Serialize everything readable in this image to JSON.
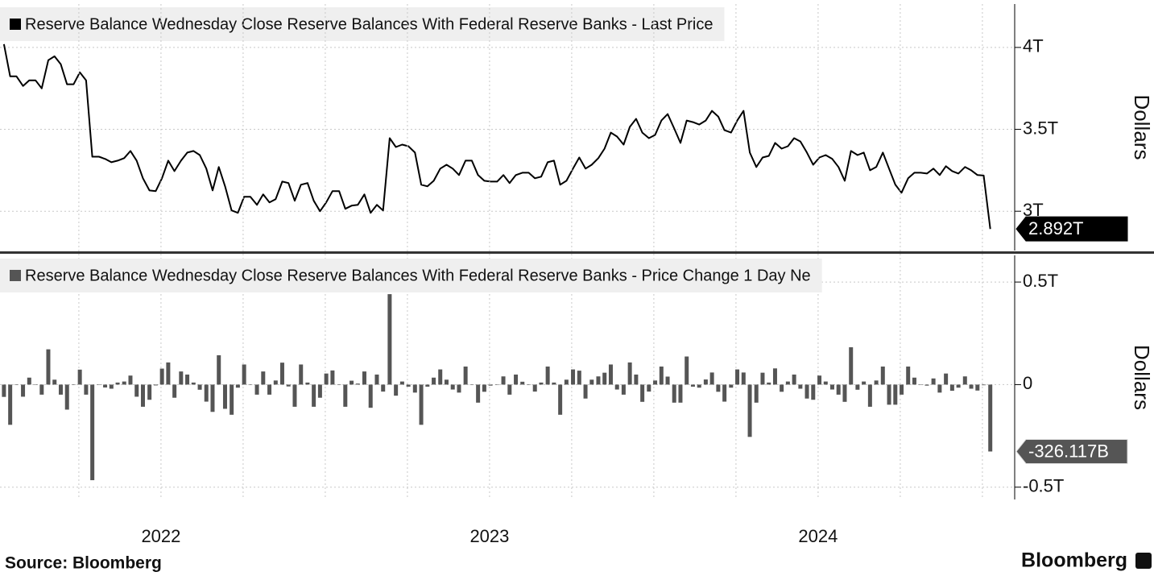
{
  "chart_data": [
    {
      "type": "line",
      "series": [
        {
          "name": "Reserve Balance Wednesday Close Reserve Balances With Federal Reserve Banks - Last Price",
          "color": "#000000",
          "values": [
            4.02,
            3.824,
            3.824,
            3.765,
            3.799,
            3.799,
            3.75,
            3.922,
            3.946,
            3.897,
            3.775,
            3.775,
            3.848,
            3.799,
            3.333,
            3.333,
            3.319,
            3.299,
            3.309,
            3.324,
            3.368,
            3.309,
            3.201,
            3.127,
            3.123,
            3.201,
            3.309,
            3.245,
            3.309,
            3.358,
            3.368,
            3.343,
            3.26,
            3.127,
            3.27,
            3.152,
            3.005,
            2.99,
            3.088,
            3.088,
            3.039,
            3.103,
            3.054,
            3.074,
            3.181,
            3.172,
            3.064,
            3.162,
            3.172,
            3.064,
            3.0,
            3.054,
            3.123,
            3.123,
            3.015,
            3.034,
            3.039,
            3.103,
            2.99,
            3.039,
            3.005,
            3.446,
            3.392,
            3.407,
            3.397,
            3.358,
            3.162,
            3.152,
            3.186,
            3.26,
            3.284,
            3.26,
            3.221,
            3.309,
            3.309,
            3.221,
            3.186,
            3.181,
            3.181,
            3.221,
            3.172,
            3.221,
            3.235,
            3.235,
            3.201,
            3.211,
            3.299,
            3.309,
            3.162,
            3.186,
            3.26,
            3.328,
            3.26,
            3.284,
            3.324,
            3.382,
            3.48,
            3.456,
            3.407,
            3.515,
            3.564,
            3.48,
            3.446,
            3.466,
            3.554,
            3.593,
            3.505,
            3.417,
            3.554,
            3.544,
            3.529,
            3.554,
            3.613,
            3.578,
            3.495,
            3.48,
            3.554,
            3.613,
            3.358,
            3.27,
            3.328,
            3.338,
            3.417,
            3.382,
            3.397,
            3.446,
            3.426,
            3.358,
            3.284,
            3.328,
            3.343,
            3.319,
            3.27,
            3.186,
            3.368,
            3.343,
            3.358,
            3.25,
            3.27,
            3.358,
            3.26,
            3.162,
            3.113,
            3.201,
            3.235,
            3.235,
            3.23,
            3.26,
            3.221,
            3.275,
            3.245,
            3.23,
            3.27,
            3.25,
            3.221,
            3.218,
            2.892
          ],
          "value_labels": [
            null,
            null,
            null,
            null,
            null,
            null,
            null,
            null,
            null,
            null,
            null,
            null,
            null,
            null,
            null,
            null,
            null,
            null,
            null,
            null,
            null,
            null,
            null,
            null,
            null,
            null,
            null,
            null,
            null,
            null,
            null,
            null,
            null,
            null,
            null,
            null,
            null,
            null,
            null,
            null,
            null,
            null,
            null,
            null,
            null,
            null,
            null,
            null,
            null,
            null,
            null,
            null,
            null,
            null,
            null,
            null,
            null,
            null,
            null,
            null,
            null,
            null,
            null,
            null,
            null,
            null,
            null,
            null,
            null,
            null,
            null,
            null,
            null,
            null,
            null,
            null,
            null,
            null,
            null,
            null,
            null,
            null,
            null,
            null,
            null,
            null,
            null,
            null,
            null,
            null,
            null,
            null,
            null,
            null,
            null,
            null,
            null,
            null,
            null,
            null,
            null,
            null,
            null,
            null,
            null,
            null,
            null,
            null,
            null,
            null,
            null,
            null,
            null,
            null,
            null,
            null,
            null,
            null,
            null,
            null,
            null,
            null,
            null,
            null,
            null,
            null,
            null,
            null,
            null,
            null,
            null,
            null,
            null,
            null,
            null,
            null,
            null,
            null,
            null,
            null,
            null,
            null,
            null,
            null,
            null,
            null,
            null,
            null,
            null,
            null,
            null,
            null,
            null,
            null,
            null,
            null,
            "2.892T"
          ]
        }
      ],
      "x": [
        2021.522,
        2021.541,
        2021.56,
        2021.58,
        2021.599,
        2021.618,
        2021.637,
        2021.657,
        2021.676,
        2021.695,
        2021.714,
        2021.734,
        2021.753,
        2021.772,
        2021.791,
        2021.811,
        2021.83,
        2021.849,
        2021.868,
        2021.888,
        2021.907,
        2021.926,
        2021.945,
        2021.965,
        2021.984,
        2022.003,
        2022.022,
        2022.041,
        2022.061,
        2022.08,
        2022.099,
        2022.118,
        2022.138,
        2022.157,
        2022.176,
        2022.195,
        2022.215,
        2022.234,
        2022.253,
        2022.272,
        2022.292,
        2022.311,
        2022.33,
        2022.349,
        2022.369,
        2022.388,
        2022.407,
        2022.426,
        2022.446,
        2022.465,
        2022.484,
        2022.503,
        2022.522,
        2022.542,
        2022.561,
        2022.58,
        2022.599,
        2022.619,
        2022.638,
        2022.657,
        2022.676,
        2022.696,
        2022.715,
        2022.734,
        2022.753,
        2022.773,
        2022.792,
        2022.811,
        2022.83,
        2022.85,
        2022.869,
        2022.888,
        2022.907,
        2022.927,
        2022.946,
        2022.965,
        2022.984,
        2023.003,
        2023.023,
        2023.042,
        2023.061,
        2023.08,
        2023.1,
        2023.119,
        2023.138,
        2023.157,
        2023.177,
        2023.196,
        2023.215,
        2023.234,
        2023.254,
        2023.273,
        2023.292,
        2023.311,
        2023.331,
        2023.35,
        2023.369,
        2023.388,
        2023.408,
        2023.427,
        2023.446,
        2023.465,
        2023.485,
        2023.504,
        2023.523,
        2023.542,
        2023.562,
        2023.581,
        2023.6,
        2023.619,
        2023.638,
        2023.658,
        2023.677,
        2023.696,
        2023.715,
        2023.735,
        2023.754,
        2023.773,
        2023.792,
        2023.812,
        2023.831,
        2023.85,
        2023.869,
        2023.889,
        2023.908,
        2023.927,
        2023.946,
        2023.966,
        2023.985,
        2024.004,
        2024.023,
        2024.043,
        2024.062,
        2024.081,
        2024.1,
        2024.12,
        2024.139,
        2024.158,
        2024.177,
        2024.197,
        2024.216,
        2024.235,
        2024.254,
        2024.274,
        2024.293,
        2024.312,
        2024.331,
        2024.351,
        2024.37,
        2024.389,
        2024.408,
        2024.427,
        2024.447,
        2024.466,
        2024.485,
        2024.504,
        2024.524
      ],
      "xlim": [
        2021.51,
        2024.586
      ],
      "ylim": [
        2.76,
        4.265
      ],
      "yticks": [
        {
          "value": 3,
          "label": "3T"
        },
        {
          "value": 3.5,
          "label": "3.5T"
        },
        {
          "value": 4,
          "label": "4T"
        }
      ],
      "ylabel": "Dollars",
      "grid": true
    },
    {
      "type": "bar",
      "series": [
        {
          "name": "Reserve Balance Wednesday Close Reserve Balances With Federal Reserve Banks - Price Change 1 Day Ne",
          "color": "#555555",
          "values": [
            -0.06,
            -0.196,
            0,
            -0.059,
            0.034,
            0,
            -0.049,
            0.172,
            0.024,
            -0.049,
            -0.122,
            0,
            0.073,
            -0.049,
            -0.466,
            0,
            -0.014,
            -0.02,
            0.01,
            0.015,
            0.044,
            -0.059,
            -0.108,
            -0.074,
            -0.004,
            0.078,
            0.108,
            -0.064,
            0.064,
            0.049,
            0.01,
            -0.025,
            -0.083,
            -0.133,
            0.143,
            -0.118,
            -0.147,
            -0.015,
            0.098,
            0,
            -0.049,
            0.064,
            -0.049,
            0.02,
            0.107,
            -0.009,
            -0.108,
            0.098,
            0.01,
            -0.108,
            -0.064,
            0.054,
            0.069,
            0,
            -0.108,
            0.019,
            0.005,
            0.064,
            -0.113,
            0.049,
            -0.034,
            0.441,
            -0.054,
            0.015,
            -0.01,
            -0.039,
            -0.196,
            -0.01,
            0.034,
            0.074,
            0.024,
            -0.024,
            -0.039,
            0.088,
            0,
            -0.088,
            -0.035,
            -0.005,
            0,
            0.04,
            -0.049,
            0.049,
            0.014,
            0,
            -0.034,
            0.01,
            0.088,
            0.01,
            -0.147,
            0.024,
            0.074,
            0.068,
            -0.068,
            0.024,
            0.04,
            0.058,
            0.098,
            -0.024,
            -0.049,
            0.108,
            0.049,
            -0.084,
            -0.034,
            0.02,
            0.088,
            0.039,
            -0.088,
            -0.088,
            0.137,
            -0.01,
            -0.015,
            0.025,
            0.059,
            -0.035,
            -0.083,
            -0.015,
            0.074,
            0.059,
            -0.255,
            -0.088,
            0.058,
            0.01,
            0.079,
            -0.035,
            0.015,
            0.049,
            -0.02,
            -0.068,
            -0.074,
            0.044,
            0.015,
            -0.024,
            -0.049,
            -0.084,
            0.182,
            -0.025,
            0.015,
            -0.108,
            0.02,
            0.088,
            -0.098,
            -0.098,
            -0.049,
            0.088,
            0.034,
            0,
            -0.005,
            0.03,
            -0.039,
            0.054,
            -0.03,
            -0.015,
            0.04,
            -0.02,
            -0.029,
            -0.003,
            -0.326117
          ],
          "value_labels": [
            null,
            null,
            null,
            null,
            null,
            null,
            null,
            null,
            null,
            null,
            null,
            null,
            null,
            null,
            null,
            null,
            null,
            null,
            null,
            null,
            null,
            null,
            null,
            null,
            null,
            null,
            null,
            null,
            null,
            null,
            null,
            null,
            null,
            null,
            null,
            null,
            null,
            null,
            null,
            null,
            null,
            null,
            null,
            null,
            null,
            null,
            null,
            null,
            null,
            null,
            null,
            null,
            null,
            null,
            null,
            null,
            null,
            null,
            null,
            null,
            null,
            null,
            null,
            null,
            null,
            null,
            null,
            null,
            null,
            null,
            null,
            null,
            null,
            null,
            null,
            null,
            null,
            null,
            null,
            null,
            null,
            null,
            null,
            null,
            null,
            null,
            null,
            null,
            null,
            null,
            null,
            null,
            null,
            null,
            null,
            null,
            null,
            null,
            null,
            null,
            null,
            null,
            null,
            null,
            null,
            null,
            null,
            null,
            null,
            null,
            null,
            null,
            null,
            null,
            null,
            null,
            null,
            null,
            null,
            null,
            null,
            null,
            null,
            null,
            null,
            null,
            null,
            null,
            null,
            null,
            null,
            null,
            null,
            null,
            null,
            null,
            null,
            null,
            null,
            null,
            null,
            null,
            null,
            null,
            null,
            null,
            null,
            null,
            null,
            null,
            null,
            null,
            null,
            null,
            null,
            null,
            "-326.117B"
          ]
        }
      ],
      "x": [
        2021.522,
        2021.541,
        2021.56,
        2021.58,
        2021.599,
        2021.618,
        2021.637,
        2021.657,
        2021.676,
        2021.695,
        2021.714,
        2021.734,
        2021.753,
        2021.772,
        2021.791,
        2021.811,
        2021.83,
        2021.849,
        2021.868,
        2021.888,
        2021.907,
        2021.926,
        2021.945,
        2021.965,
        2021.984,
        2022.003,
        2022.022,
        2022.041,
        2022.061,
        2022.08,
        2022.099,
        2022.118,
        2022.138,
        2022.157,
        2022.176,
        2022.195,
        2022.215,
        2022.234,
        2022.253,
        2022.272,
        2022.292,
        2022.311,
        2022.33,
        2022.349,
        2022.369,
        2022.388,
        2022.407,
        2022.426,
        2022.446,
        2022.465,
        2022.484,
        2022.503,
        2022.522,
        2022.542,
        2022.561,
        2022.58,
        2022.599,
        2022.619,
        2022.638,
        2022.657,
        2022.676,
        2022.696,
        2022.715,
        2022.734,
        2022.753,
        2022.773,
        2022.792,
        2022.811,
        2022.83,
        2022.85,
        2022.869,
        2022.888,
        2022.907,
        2022.927,
        2022.946,
        2022.965,
        2022.984,
        2023.003,
        2023.023,
        2023.042,
        2023.061,
        2023.08,
        2023.1,
        2023.119,
        2023.138,
        2023.157,
        2023.177,
        2023.196,
        2023.215,
        2023.234,
        2023.254,
        2023.273,
        2023.292,
        2023.311,
        2023.331,
        2023.35,
        2023.369,
        2023.388,
        2023.408,
        2023.427,
        2023.446,
        2023.465,
        2023.485,
        2023.504,
        2023.523,
        2023.542,
        2023.562,
        2023.581,
        2023.6,
        2023.619,
        2023.638,
        2023.658,
        2023.677,
        2023.696,
        2023.715,
        2023.735,
        2023.754,
        2023.773,
        2023.792,
        2023.812,
        2023.831,
        2023.85,
        2023.869,
        2023.889,
        2023.908,
        2023.927,
        2023.946,
        2023.966,
        2023.985,
        2024.004,
        2024.023,
        2024.043,
        2024.062,
        2024.081,
        2024.1,
        2024.12,
        2024.139,
        2024.158,
        2024.177,
        2024.197,
        2024.216,
        2024.235,
        2024.254,
        2024.274,
        2024.293,
        2024.312,
        2024.331,
        2024.351,
        2024.37,
        2024.389,
        2024.408,
        2024.427,
        2024.447,
        2024.466,
        2024.485,
        2024.504,
        2024.524
      ],
      "xlim": [
        2021.51,
        2024.586
      ],
      "xticks": [
        2022,
        2023,
        2024
      ],
      "x_gridlines": [
        2021.75,
        2022,
        2022.25,
        2022.5,
        2022.75,
        2023,
        2023.25,
        2023.5,
        2023.75,
        2024,
        2024.25,
        2024.5
      ],
      "ylim": [
        -0.56,
        0.63
      ],
      "yticks": [
        {
          "value": -0.5,
          "label": "-0.5T"
        },
        0,
        {
          "value": 0.5,
          "label": "0.5T"
        }
      ],
      "ylabel": "Dollars",
      "grid": true
    }
  ],
  "source": "Source: Bloomberg",
  "brand": "Bloomberg"
}
